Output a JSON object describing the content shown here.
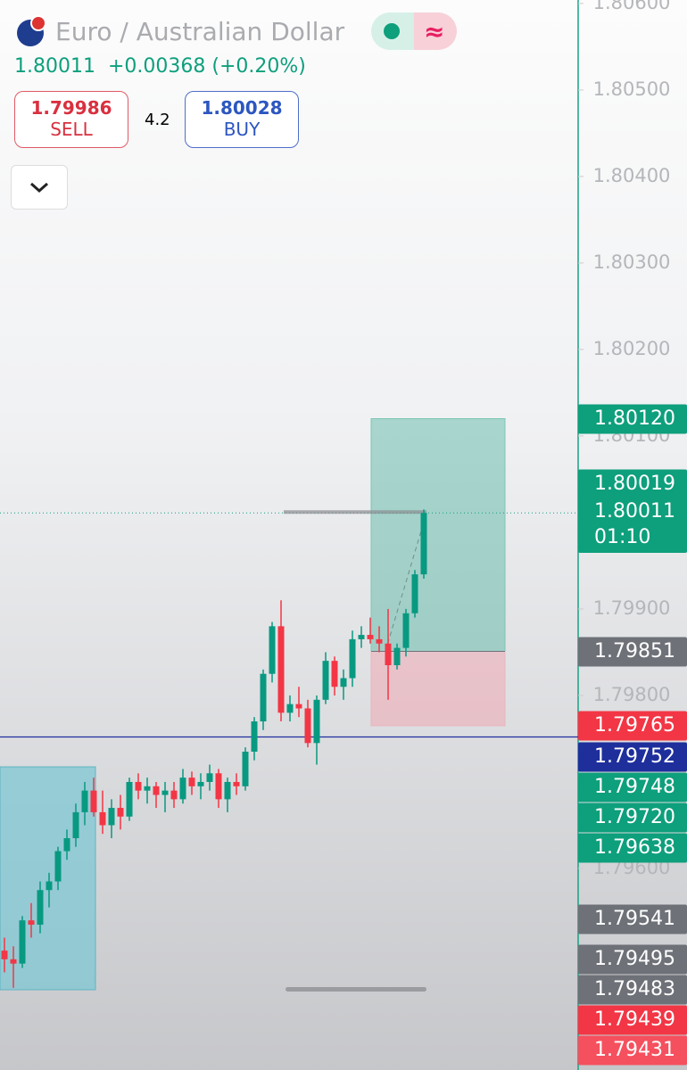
{
  "header": {
    "title": "Euro / Australian Dollar",
    "price": "1.80011",
    "change": "+0.00368 (+0.20%)",
    "sell_price": "1.79986",
    "sell_label": "SELL",
    "spread": "4.2",
    "buy_price": "1.80028",
    "buy_label": "BUY"
  },
  "chart_data": {
    "type": "candlestick",
    "up_color": "#089981",
    "down_color": "#f23645",
    "ylim": [
      1.79367,
      1.80604
    ],
    "yticks": [
      {
        "value": 1.806,
        "label": "1.80600"
      },
      {
        "value": 1.805,
        "label": "1.80500"
      },
      {
        "value": 1.804,
        "label": "1.80400"
      },
      {
        "value": 1.803,
        "label": "1.80300"
      },
      {
        "value": 1.802,
        "label": "1.80200"
      },
      {
        "value": 1.801,
        "label": "1.80100"
      },
      {
        "value": 1.799,
        "label": "1.79900"
      },
      {
        "value": 1.798,
        "label": "1.79800"
      },
      {
        "value": 1.796,
        "label": "1.79600"
      }
    ],
    "open": [
      1.79505,
      1.79495,
      1.7949,
      1.7954,
      1.79535,
      1.79575,
      1.79585,
      1.7962,
      1.79635,
      1.79665,
      1.7969,
      1.79665,
      1.7965,
      1.7967,
      1.7966,
      1.797,
      1.7969,
      1.79695,
      1.79685,
      1.7969,
      1.7968,
      1.79705,
      1.79695,
      1.797,
      1.7971,
      1.7968,
      1.797,
      1.79695,
      1.79735,
      1.7977,
      1.79825,
      1.7988,
      1.7978,
      1.7979,
      1.79785,
      1.79745,
      1.79795,
      1.7984,
      1.7981,
      1.7982,
      1.79865,
      1.7987,
      1.79865,
      1.7986,
      1.79835,
      1.79855,
      1.79895,
      1.7994
    ],
    "high": [
      1.7952,
      1.7951,
      1.79545,
      1.7956,
      1.79585,
      1.79595,
      1.79625,
      1.79645,
      1.79675,
      1.797,
      1.79705,
      1.7969,
      1.7968,
      1.79685,
      1.79705,
      1.7971,
      1.79705,
      1.797,
      1.797,
      1.797,
      1.79715,
      1.79712,
      1.7971,
      1.7972,
      1.79715,
      1.79705,
      1.7971,
      1.7974,
      1.79775,
      1.7983,
      1.79885,
      1.7991,
      1.798,
      1.7981,
      1.79795,
      1.798,
      1.7985,
      1.79845,
      1.7983,
      1.79875,
      1.7988,
      1.7989,
      1.7988,
      1.799,
      1.7986,
      1.799,
      1.79945,
      1.80015
    ],
    "low": [
      1.7948,
      1.79462,
      1.79485,
      1.7952,
      1.79525,
      1.79555,
      1.79575,
      1.7961,
      1.79625,
      1.7965,
      1.7966,
      1.7964,
      1.79635,
      1.79645,
      1.79655,
      1.7968,
      1.79675,
      1.7967,
      1.79665,
      1.7967,
      1.79675,
      1.79685,
      1.7968,
      1.7969,
      1.7967,
      1.79665,
      1.79685,
      1.7969,
      1.79725,
      1.7976,
      1.79815,
      1.7977,
      1.7977,
      1.79775,
      1.7974,
      1.7972,
      1.7979,
      1.798,
      1.79795,
      1.7981,
      1.79855,
      1.7986,
      1.7985,
      1.79795,
      1.7983,
      1.79845,
      1.7989,
      1.79935
    ],
    "close": [
      1.79495,
      1.7949,
      1.7954,
      1.79535,
      1.79575,
      1.79585,
      1.7962,
      1.79635,
      1.79665,
      1.7969,
      1.79665,
      1.7965,
      1.7967,
      1.7966,
      1.797,
      1.7969,
      1.79695,
      1.79685,
      1.7969,
      1.7968,
      1.79705,
      1.79695,
      1.797,
      1.7971,
      1.7968,
      1.797,
      1.79695,
      1.79735,
      1.7977,
      1.79825,
      1.7988,
      1.7978,
      1.7979,
      1.79785,
      1.79745,
      1.79795,
      1.7984,
      1.7981,
      1.7982,
      1.79865,
      1.7987,
      1.79865,
      1.7986,
      1.79835,
      1.79855,
      1.79895,
      1.7994,
      1.80011
    ],
    "price_labels": [
      {
        "value": 1.8012,
        "label": "1.80120",
        "color": "#0e9f7c"
      },
      {
        "value": 1.80019,
        "label": "1.80019",
        "color": "#0e9f7c"
      },
      {
        "value": 1.80011,
        "label": "1.80011",
        "color": "#0e9f7c"
      },
      {
        "value": 1.79851,
        "label": "1.79851",
        "color": "#6e7178"
      },
      {
        "value": 1.79765,
        "label": "1.79765",
        "color": "#f23645"
      },
      {
        "value": 1.79752,
        "label": "1.79752",
        "color": "#1e2f9c"
      },
      {
        "value": 1.79748,
        "label": "1.79748",
        "color": "#0e9f7c"
      },
      {
        "value": 1.7972,
        "label": "1.79720",
        "color": "#0e9f7c"
      },
      {
        "value": 1.79638,
        "label": "1.79638",
        "color": "#0e9f7c"
      },
      {
        "value": 1.79541,
        "label": "1.79541",
        "color": "#6e7178"
      },
      {
        "value": 1.79495,
        "label": "1.79495",
        "color": "#6e7178"
      },
      {
        "value": 1.79483,
        "label": "1.79483",
        "color": "#6e7178"
      },
      {
        "value": 1.79439,
        "label": "1.79439",
        "color": "#f23645"
      },
      {
        "value": 1.79431,
        "label": "1.79431",
        "color": "#f5505e"
      }
    ],
    "countdown": "01:10"
  }
}
